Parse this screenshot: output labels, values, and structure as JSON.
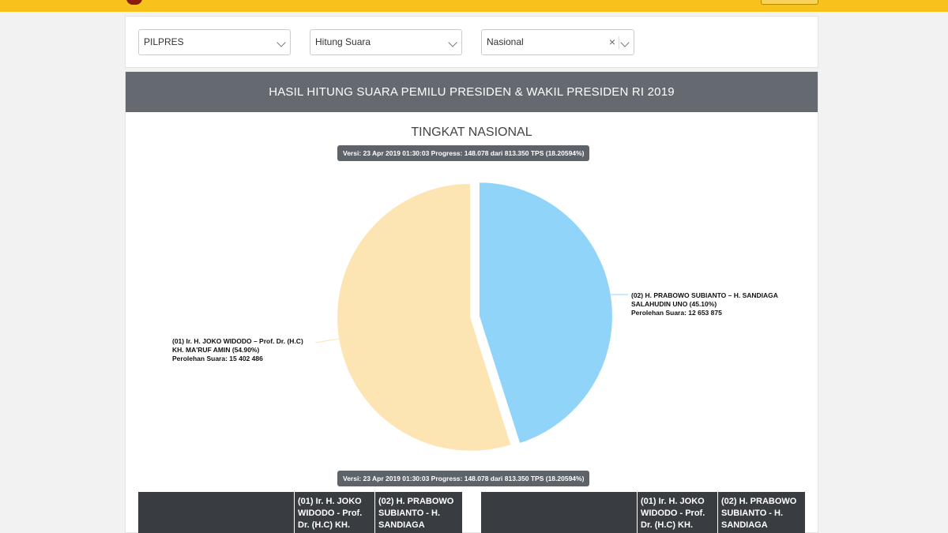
{
  "filters": {
    "election_type": "PILPRES",
    "data_source": "Hitung Suara",
    "region": "Nasional",
    "clear_glyph": "×"
  },
  "header": {
    "title": "HASIL HITUNG SUARA PEMILU PRESIDEN & WAKIL PRESIDEN RI 2019"
  },
  "chart_title": "TINGKAT NASIONAL",
  "version_text": "Versi: 23 Apr 2019 01:30:03 Progress: 148.078 dari 813.350 TPS (18.20594%)",
  "chart_data": {
    "type": "pie",
    "title": "TINGKAT NASIONAL",
    "slices": [
      {
        "label_lines": [
          "(02) H. PRABOWO SUBIANTO – H. SANDIAGA",
          "SALAHUDIN UNO (45.10%)",
          "Perolehan Suara: 12 653 875"
        ],
        "percent": 45.1,
        "votes": 12653875,
        "color": "#91d4fa"
      },
      {
        "label_lines": [
          "(01) Ir. H. JOKO WIDODO – Prof. Dr. (H.C)",
          "KH. MA'RUF AMIN (54.90%)",
          "Perolehan Suara: 15 402 486"
        ],
        "percent": 54.9,
        "votes": 15402486,
        "color": "#fde4b3"
      }
    ]
  },
  "tables": [
    {
      "headers": [
        "",
        "(01) Ir. H. JOKO WIDODO - Prof. Dr. (H.C) KH.",
        "(02) H. PRABOWO SUBIANTO - H. SANDIAGA"
      ]
    },
    {
      "headers": [
        "",
        "(01) Ir. H. JOKO WIDODO - Prof. Dr. (H.C) KH.",
        "(02) H. PRABOWO SUBIANTO - H. SANDIAGA"
      ]
    }
  ],
  "colors": {
    "topbar": "#f7c21b",
    "header_bg": "#646a70",
    "table_head_bg": "#393d42"
  }
}
